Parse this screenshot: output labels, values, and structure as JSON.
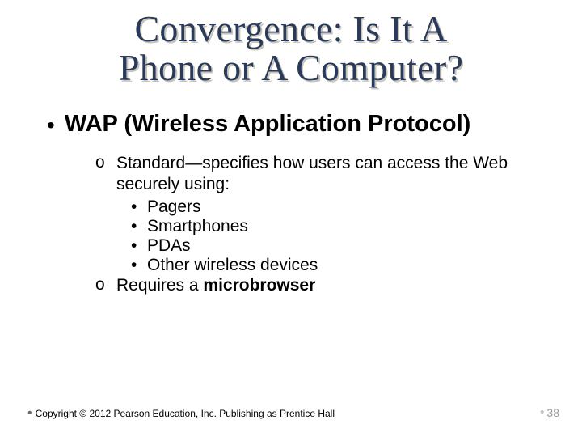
{
  "title": {
    "line1": "Convergence: Is It A",
    "line2": "Phone or A Computer?",
    "fontsize": 46,
    "color": "#2a3a5a",
    "shadow_color": "#c8c4b6"
  },
  "main_bullet": {
    "text": "WAP (Wireless Application Protocol)",
    "fontsize": 29
  },
  "sub": {
    "fontsize": 21,
    "items": [
      {
        "lead": "Standard—specifies how users can access the Web securely using:",
        "inner": [
          "Pagers",
          "Smartphones",
          "PDAs",
          "Other wireless devices"
        ]
      },
      {
        "lead_pre": "Requires a ",
        "lead_bold": "microbrowser"
      }
    ]
  },
  "footer": {
    "text": "Copyright © 2012 Pearson Education, Inc. Publishing as Prentice Hall",
    "fontsize": 12
  },
  "page": {
    "number": "38",
    "fontsize": 14,
    "color": "#9a9a9a"
  }
}
